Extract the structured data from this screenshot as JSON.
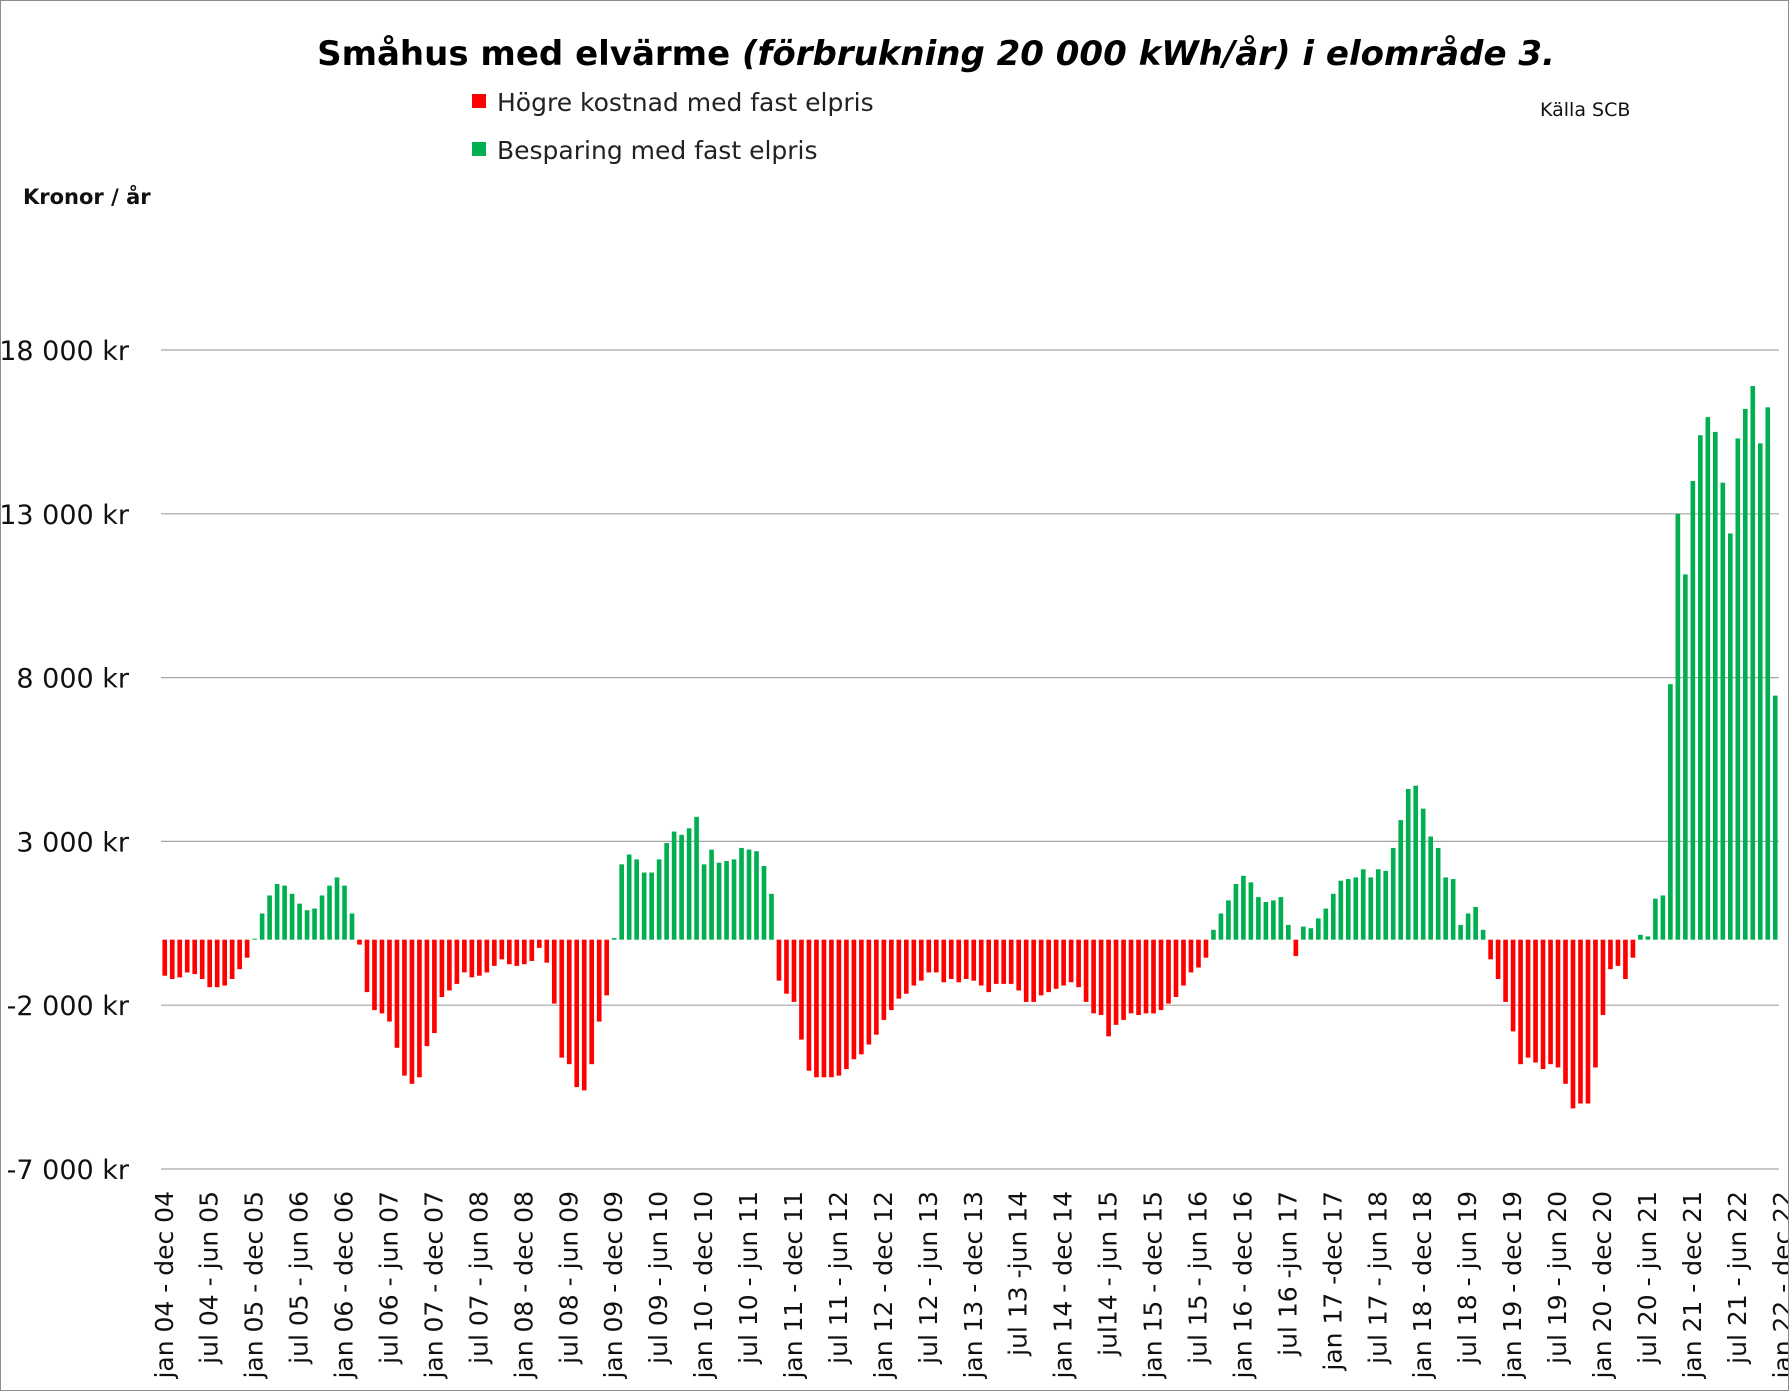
{
  "chart_data": {
    "type": "bar",
    "title": {
      "part1": "Småhus med elvärme ",
      "part2": "(förbrukning 20 000 kWh/år) i  elområde 3."
    },
    "source": "Källa SCB",
    "ylabel": "Kronor / år",
    "ylim": [
      -7000,
      18000
    ],
    "grid": true,
    "legend_position": "top",
    "colors": {
      "negative": "#ff0000",
      "positive": "#00b050"
    },
    "legend": [
      {
        "label": "Högre kostnad med fast elpris",
        "color": "#ff0000"
      },
      {
        "label": "Besparing med fast elpris",
        "color": "#00b050"
      }
    ],
    "y_ticks": [
      {
        "value": 18000,
        "label": "18 000 kr"
      },
      {
        "value": 13000,
        "label": "13 000 kr"
      },
      {
        "value": 8000,
        "label": "8 000 kr"
      },
      {
        "value": 3000,
        "label": "3 000 kr"
      },
      {
        "value": -2000,
        "label": "-2 000 kr"
      },
      {
        "value": -7000,
        "label": "-7 000 kr"
      }
    ],
    "x_tick_labels": [
      "jan 04 - dec 04",
      "jul 04 - jun 05",
      "jan 05 - dec 05",
      "jul 05 - jun 06",
      "jan 06 - dec 06",
      "jul 06 - jun 07",
      "jan 07 - dec 07",
      "jul 07 - jun 08",
      "jan 08 - dec 08",
      "jul 08 - jun 09",
      "jan 09 - dec 09",
      "jul 09 - jun 10",
      "jan 10 - dec 10",
      "jul 10 - jun 11",
      "jan 11 - dec 11",
      "jul 11 - jun 12",
      "jan 12 - dec 12",
      "jul 12 - jun 13",
      "jan 13 - dec 13",
      "jul 13 -jun 14",
      "jan 14 - dec 14",
      "jul14 - jun 15",
      "jan 15 - dec 15",
      "jul 15 - jun 16",
      "jan 16 - dec 16",
      "jul 16 -jun 17",
      "jan  17 -dec 17",
      "jul 17 - jun 18",
      "jan 18 - dec 18",
      "jul 18 - jun 19",
      "jan 19 - dec 19",
      "jul 19 - jun 20",
      "jan 20 - dec 20",
      "jul 20 - jun 21",
      "jan 21 - dec 21",
      "jul 21 - jun 22",
      "jan 22 - dec 22"
    ],
    "values": [
      -1100,
      -1200,
      -1150,
      -1000,
      -1050,
      -1200,
      -1450,
      -1450,
      -1400,
      -1200,
      -900,
      -550,
      30,
      800,
      1350,
      1700,
      1650,
      1400,
      1100,
      900,
      950,
      1350,
      1650,
      1900,
      1650,
      800,
      -150,
      -1600,
      -2150,
      -2250,
      -2500,
      -3300,
      -4150,
      -4400,
      -4200,
      -3250,
      -2850,
      -1750,
      -1550,
      -1350,
      -1000,
      -1150,
      -1100,
      -1000,
      -800,
      -600,
      -750,
      -800,
      -750,
      -650,
      -250,
      -700,
      -1950,
      -3600,
      -3800,
      -4500,
      -4600,
      -3800,
      -2500,
      -1700,
      50,
      2300,
      2600,
      2450,
      2050,
      2050,
      2450,
      2950,
      3300,
      3200,
      3400,
      3750,
      2300,
      2750,
      2350,
      2400,
      2450,
      2800,
      2750,
      2700,
      2250,
      1400,
      -1250,
      -1650,
      -1900,
      -3050,
      -4000,
      -4200,
      -4200,
      -4200,
      -4150,
      -3950,
      -3650,
      -3500,
      -3200,
      -2900,
      -2450,
      -2150,
      -1800,
      -1650,
      -1400,
      -1250,
      -1000,
      -1000,
      -1300,
      -1200,
      -1300,
      -1200,
      -1250,
      -1400,
      -1600,
      -1350,
      -1350,
      -1350,
      -1550,
      -1900,
      -1900,
      -1700,
      -1600,
      -1500,
      -1400,
      -1300,
      -1450,
      -1900,
      -2250,
      -2300,
      -2950,
      -2600,
      -2450,
      -2250,
      -2300,
      -2250,
      -2250,
      -2150,
      -1950,
      -1750,
      -1400,
      -1000,
      -850,
      -550,
      300,
      800,
      1200,
      1700,
      1950,
      1750,
      1300,
      1150,
      1200,
      1300,
      450,
      -500,
      400,
      350,
      650,
      950,
      1400,
      1800,
      1850,
      1900,
      2150,
      1900,
      2150,
      2100,
      2800,
      3650,
      4600,
      4700,
      4000,
      3150,
      2800,
      1900,
      1850,
      450,
      800,
      1000,
      300,
      -600,
      -1200,
      -1900,
      -2800,
      -3800,
      -3600,
      -3750,
      -3950,
      -3800,
      -3900,
      -4400,
      -5150,
      -5000,
      -5000,
      -3900,
      -2300,
      -900,
      -800,
      -1200,
      -550,
      150,
      100,
      1250,
      1350,
      7800,
      13000,
      11150,
      14000,
      15400,
      15950,
      15500,
      13950,
      12400,
      15300,
      16200,
      16900,
      15150,
      16250,
      7450
    ]
  }
}
